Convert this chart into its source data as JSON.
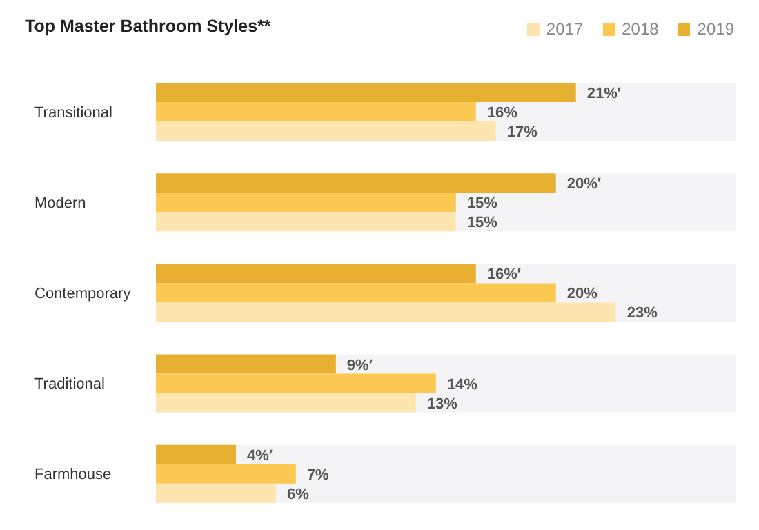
{
  "chart_data": {
    "type": "bar",
    "orientation": "horizontal",
    "title": "Top Master Bathroom Styles**",
    "categories": [
      "Transitional",
      "Modern",
      "Contemporary",
      "Traditional",
      "Farmhouse"
    ],
    "series": [
      {
        "name": "2017",
        "color": "#fde5b0",
        "values": [
          17,
          15,
          23,
          13,
          6
        ],
        "value_labels": [
          "17%",
          "15%",
          "23%",
          "13%",
          "6%"
        ]
      },
      {
        "name": "2018",
        "color": "#fbc852",
        "values": [
          16,
          15,
          20,
          14,
          7
        ],
        "value_labels": [
          "16%",
          "15%",
          "20%",
          "14%",
          "7%"
        ]
      },
      {
        "name": "2019",
        "color": "#e8b030",
        "values": [
          21,
          20,
          16,
          9,
          4
        ],
        "value_labels": [
          "21%′",
          "20%′",
          "16%′",
          "9%′",
          "4%′"
        ]
      }
    ],
    "legend": "top right",
    "grid": false
  }
}
